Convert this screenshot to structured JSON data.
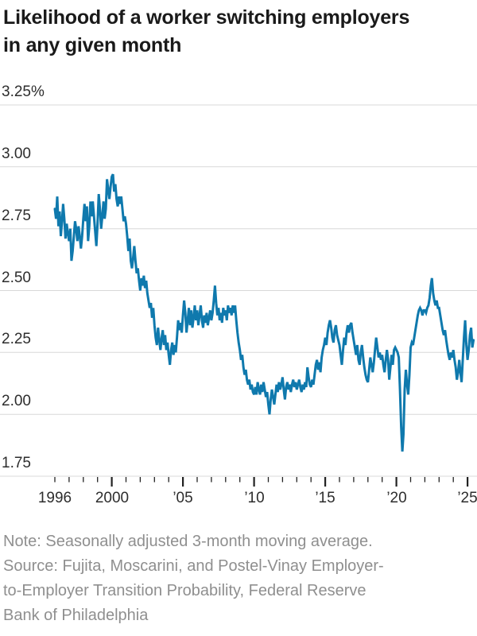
{
  "title": "Likelihood of a worker switching employers in any given month",
  "title_lines": [
    "Likelihood of a worker switching employers",
    "in any given month"
  ],
  "note": "Note: Seasonally adjusted 3-month moving average.",
  "source_lines": [
    "Source: Fujita, Moscarini, and Postel-Vinay Employer-",
    "to-Employer Transition Probability, Federal Reserve",
    "Bank of Philadelphia"
  ],
  "colors": {
    "line": "#0f79ad",
    "grid": "#d8d8d8",
    "tick": "#222222",
    "title_text": "#1a1a1a",
    "axis_text": "#2d2d2d",
    "note_text": "#8f8f8f"
  },
  "chart_data": {
    "type": "line",
    "title": "Likelihood of a worker switching employers in any given month",
    "xlabel": "",
    "ylabel": "",
    "unit": "%",
    "ylim": [
      1.75,
      3.25
    ],
    "xlim": [
      1995.95,
      2025.6
    ],
    "grid": "horizontal",
    "legend": "none",
    "y_ticks": [
      {
        "value": 3.25,
        "label": "3.25%"
      },
      {
        "value": 3.0,
        "label": "3.00"
      },
      {
        "value": 2.75,
        "label": "2.75"
      },
      {
        "value": 2.5,
        "label": "2.50"
      },
      {
        "value": 2.25,
        "label": "2.25"
      },
      {
        "value": 2.0,
        "label": "2.00"
      },
      {
        "value": 1.75,
        "label": "1.75"
      }
    ],
    "x_ticks": [
      {
        "year": 1996,
        "label": "1996",
        "major": false
      },
      {
        "year": 2000,
        "label": "2000",
        "major": true
      },
      {
        "year": 2005,
        "label": "’05",
        "major": true
      },
      {
        "year": 2010,
        "label": "’10",
        "major": true
      },
      {
        "year": 2015,
        "label": "’15",
        "major": true
      },
      {
        "year": 2020,
        "label": "’20",
        "major": true
      },
      {
        "year": 2025,
        "label": "’25",
        "major": true
      }
    ],
    "minor_tick_years": {
      "from": 1996,
      "to": 2025,
      "every": 1,
      "major_every": 5
    },
    "series": [
      {
        "name": "Employer-to-employer transition probability",
        "start_year": 1996,
        "points_per_year": 12,
        "values": [
          2.83,
          2.79,
          2.88,
          2.76,
          2.82,
          2.72,
          2.78,
          2.85,
          2.79,
          2.71,
          2.77,
          2.73,
          2.7,
          2.75,
          2.62,
          2.66,
          2.72,
          2.78,
          2.75,
          2.7,
          2.76,
          2.72,
          2.67,
          2.72,
          2.79,
          2.85,
          2.78,
          2.84,
          2.7,
          2.76,
          2.86,
          2.8,
          2.86,
          2.8,
          2.74,
          2.68,
          2.77,
          2.89,
          2.83,
          2.75,
          2.8,
          2.86,
          2.79,
          2.83,
          2.95,
          2.91,
          2.87,
          2.92,
          2.96,
          2.97,
          2.9,
          2.93,
          2.87,
          2.84,
          2.88,
          2.85,
          2.88,
          2.83,
          2.78,
          2.8,
          2.77,
          2.72,
          2.66,
          2.71,
          2.62,
          2.59,
          2.63,
          2.68,
          2.62,
          2.57,
          2.59,
          2.54,
          2.5,
          2.55,
          2.52,
          2.56,
          2.51,
          2.54,
          2.49,
          2.46,
          2.43,
          2.45,
          2.39,
          2.43,
          2.36,
          2.31,
          2.28,
          2.35,
          2.3,
          2.26,
          2.31,
          2.34,
          2.28,
          2.32,
          2.26,
          2.29,
          2.24,
          2.2,
          2.26,
          2.29,
          2.24,
          2.28,
          2.25,
          2.31,
          2.38,
          2.34,
          2.37,
          2.33,
          2.4,
          2.46,
          2.41,
          2.33,
          2.38,
          2.43,
          2.36,
          2.42,
          2.35,
          2.39,
          2.44,
          2.38,
          2.42,
          2.36,
          2.4,
          2.44,
          2.38,
          2.35,
          2.4,
          2.37,
          2.41,
          2.36,
          2.39,
          2.42,
          2.38,
          2.41,
          2.46,
          2.52,
          2.45,
          2.4,
          2.43,
          2.38,
          2.41,
          2.37,
          2.43,
          2.4,
          2.42,
          2.38,
          2.44,
          2.41,
          2.43,
          2.4,
          2.44,
          2.41,
          2.44,
          2.38,
          2.33,
          2.29,
          2.26,
          2.22,
          2.24,
          2.19,
          2.16,
          2.18,
          2.14,
          2.12,
          2.14,
          2.1,
          2.12,
          2.09,
          2.08,
          2.11,
          2.08,
          2.13,
          2.1,
          2.08,
          2.12,
          2.09,
          2.13,
          2.1,
          2.07,
          2.09,
          2.04,
          2.0,
          2.06,
          2.1,
          2.07,
          2.04,
          2.08,
          2.12,
          2.09,
          2.13,
          2.1,
          2.12,
          2.15,
          2.1,
          2.06,
          2.11,
          2.13,
          2.1,
          2.12,
          2.09,
          2.12,
          2.14,
          2.11,
          2.13,
          2.1,
          2.12,
          2.14,
          2.11,
          2.09,
          2.12,
          2.1,
          2.13,
          2.11,
          2.19,
          2.15,
          2.12,
          2.11,
          2.14,
          2.12,
          2.16,
          2.2,
          2.22,
          2.18,
          2.21,
          2.17,
          2.23,
          2.26,
          2.28,
          2.31,
          2.28,
          2.33,
          2.36,
          2.38,
          2.35,
          2.31,
          2.29,
          2.34,
          2.36,
          2.32,
          2.3,
          2.28,
          2.24,
          2.2,
          2.26,
          2.31,
          2.28,
          2.33,
          2.36,
          2.33,
          2.36,
          2.37,
          2.33,
          2.3,
          2.27,
          2.24,
          2.28,
          2.22,
          2.2,
          2.25,
          2.28,
          2.23,
          2.19,
          2.16,
          2.14,
          2.13,
          2.18,
          2.23,
          2.2,
          2.17,
          2.21,
          2.26,
          2.31,
          2.27,
          2.23,
          2.25,
          2.22,
          2.24,
          2.2,
          2.17,
          2.22,
          2.26,
          2.22,
          2.14,
          2.19,
          2.24,
          2.2,
          2.26,
          2.27,
          2.26,
          2.25,
          2.23,
          2.1,
          1.95,
          1.85,
          1.92,
          2.1,
          2.18,
          2.12,
          2.08,
          2.16,
          2.27,
          2.29,
          2.28,
          2.31,
          2.34,
          2.37,
          2.4,
          2.42,
          2.43,
          2.42,
          2.4,
          2.42,
          2.42,
          2.41,
          2.43,
          2.44,
          2.47,
          2.52,
          2.55,
          2.49,
          2.46,
          2.44,
          2.46,
          2.43,
          2.43,
          2.4,
          2.37,
          2.34,
          2.32,
          2.34,
          2.3,
          2.27,
          2.24,
          2.22,
          2.25,
          2.23,
          2.26,
          2.22,
          2.19,
          2.14,
          2.17,
          2.22,
          2.17,
          2.13,
          2.22,
          2.31,
          2.38,
          2.28,
          2.22,
          2.26,
          2.32,
          2.35,
          2.27,
          2.3
        ]
      }
    ]
  }
}
